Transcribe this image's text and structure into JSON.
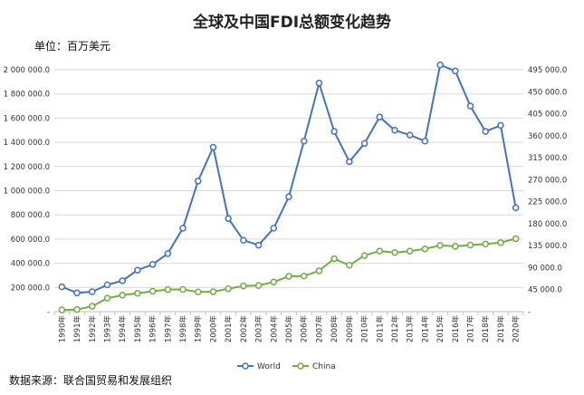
{
  "header": {
    "title": "全球及中国FDI总额变化趋势",
    "unit": "单位：百万美元"
  },
  "footer": {
    "source": "数据来源：联合国贸易和发展组织"
  },
  "colors": {
    "world": "#4472C4",
    "china": "#70AD47",
    "grid": "#d9d9d9",
    "axis": "#bfbfbf"
  },
  "chart_data": {
    "type": "line",
    "title": "全球及中国FDI总额变化趋势",
    "x": [
      "1990年",
      "1991年",
      "1992年",
      "1993年",
      "1994年",
      "1995年",
      "1996年",
      "1997年",
      "1998年",
      "1999年",
      "2000年",
      "2001年",
      "2002年",
      "2003年",
      "2004年",
      "2005年",
      "2006年",
      "2007年",
      "2008年",
      "2009年",
      "2010年",
      "2011年",
      "2012年",
      "2013年",
      "2014年",
      "2015年",
      "2016年",
      "2017年",
      "2018年",
      "2019年",
      "2020年"
    ],
    "series": [
      {
        "name": "World",
        "axis": "left",
        "values": [
          205000,
          155000,
          165000,
          222000,
          256000,
          343000,
          390000,
          480000,
          690000,
          1080000,
          1360000,
          770000,
          590000,
          550000,
          690000,
          950000,
          1410000,
          1890000,
          1490000,
          1240000,
          1390000,
          1610000,
          1500000,
          1460000,
          1410000,
          2040000,
          1990000,
          1700000,
          1490000,
          1540000,
          859000
        ]
      },
      {
        "name": "China",
        "axis": "right",
        "values": [
          3487,
          4366,
          11008,
          27515,
          33767,
          37521,
          41726,
          45257,
          45463,
          40319,
          40715,
          46878,
          52743,
          53505,
          60630,
          72406,
          72715,
          83521,
          108312,
          95000,
          114734,
          123985,
          121080,
          123911,
          128500,
          135577,
          133711,
          136315,
          138305,
          141225,
          149342
        ]
      }
    ],
    "y_left": {
      "min": 0,
      "max": 2000000,
      "ticks": [
        "-",
        "200 000.0",
        "400 000.0",
        "600 000.0",
        "800 000.0",
        "1 000 000.0",
        "1 200 000.0",
        "1 400 000.0",
        "1 600 000.0",
        "1 800 000.0",
        "2 000 000.0"
      ]
    },
    "y_right": {
      "min": 0,
      "max": 495000,
      "ticks": [
        "-",
        "45 000.0",
        "90 000.0",
        "135 000.0",
        "180 000.0",
        "225 000.0",
        "270 000.0",
        "315 000.0",
        "360 000.0",
        "405 000.0",
        "450 000.0",
        "495 000.0"
      ]
    },
    "grid": true,
    "legend_position": "bottom"
  }
}
